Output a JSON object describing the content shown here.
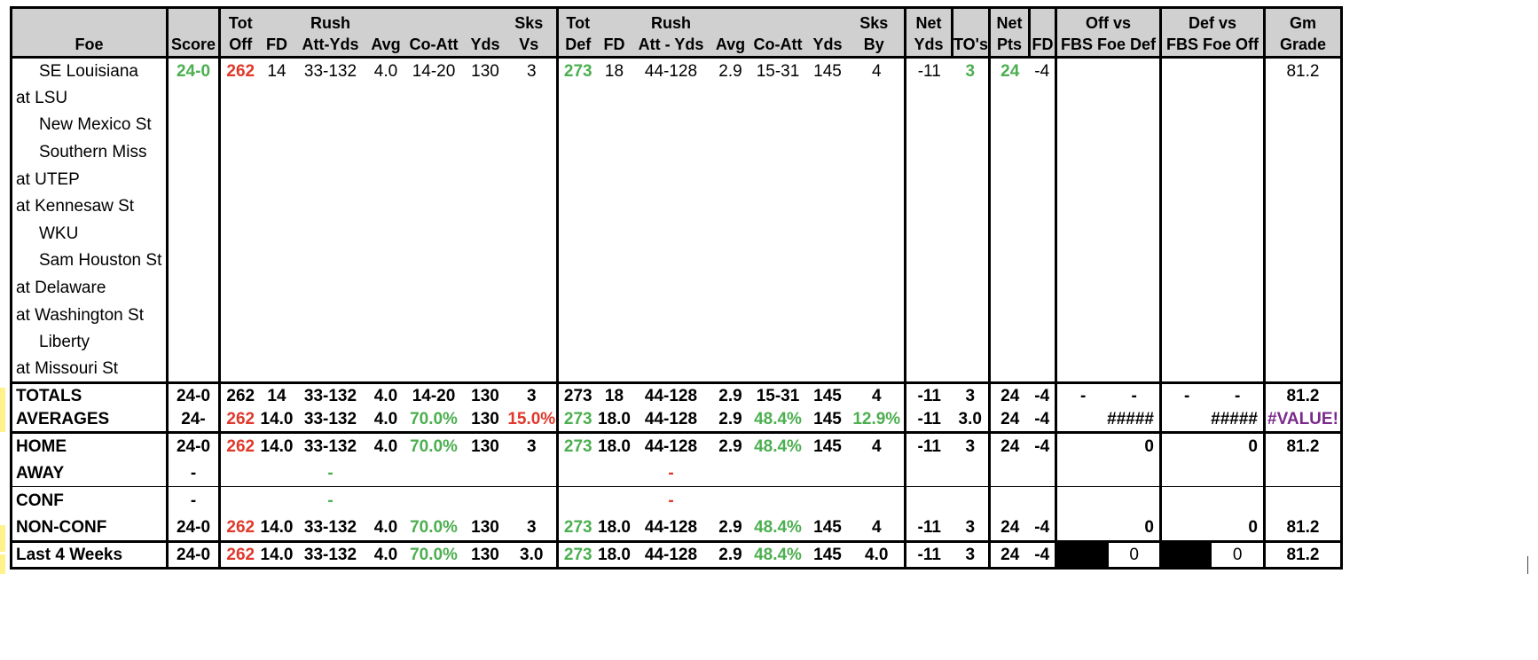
{
  "header": {
    "row1": [
      "",
      "",
      "Tot",
      "",
      "Rush",
      "",
      "",
      "",
      "Sks",
      "Tot",
      "",
      "Rush",
      "",
      "",
      "",
      "Sks",
      "Net",
      "",
      "Net",
      "",
      "Off vs",
      "Def vs",
      "Gm"
    ],
    "row2": [
      "Foe",
      "Score",
      "Off",
      "FD",
      "Att-Yds",
      "Avg",
      "Co-Att",
      "Yds",
      "Vs",
      "Def",
      "FD",
      "Att - Yds",
      "Avg",
      "Co-Att",
      "Yds",
      "By",
      "Yds",
      "TO's",
      "Pts",
      "FD",
      "FBS Foe Def",
      "FBS Foe Off",
      "Grade"
    ]
  },
  "games": [
    {
      "foe": "SE Louisiana",
      "away": false,
      "score": "24-0",
      "tot_off": "262",
      "fd": "14",
      "rush": "33-132",
      "avg": "4.0",
      "co_att": "14-20",
      "yds": "130",
      "sks_vs": "3",
      "tot_def": "273",
      "dfd": "18",
      "drush": "44-128",
      "davg": "2.9",
      "dco_att": "15-31",
      "dyds": "145",
      "sks_by": "4",
      "net_yds": "-11",
      "tos": "3",
      "net_pts": "24",
      "net_fd": "-4",
      "off_vs": "",
      "def_vs": "",
      "grade": "81.2"
    },
    {
      "foe": "at LSU",
      "away": true
    },
    {
      "foe": "New Mexico St",
      "away": false
    },
    {
      "foe": "Southern Miss",
      "away": false
    },
    {
      "foe": "at UTEP",
      "away": true
    },
    {
      "foe": "at Kennesaw St",
      "away": true
    },
    {
      "foe": "WKU",
      "away": false
    },
    {
      "foe": "Sam Houston St",
      "away": false
    },
    {
      "foe": "at Delaware",
      "away": true
    },
    {
      "foe": "at Washington St",
      "away": true
    },
    {
      "foe": "Liberty",
      "away": false
    },
    {
      "foe": "at Missouri St",
      "away": true
    }
  ],
  "totals": {
    "label": "TOTALS",
    "score": "24-0",
    "tot_off": "262",
    "fd": "14",
    "rush": "33-132",
    "avg": "4.0",
    "co_att": "14-20",
    "yds": "130",
    "sks_vs": "3",
    "tot_def": "273",
    "dfd": "18",
    "drush": "44-128",
    "davg": "2.9",
    "dco_att": "15-31",
    "dyds": "145",
    "sks_by": "4",
    "net_yds": "-11",
    "tos": "3",
    "net_pts": "24",
    "net_fd": "-4",
    "off_a": "-",
    "off_b": "-",
    "def_a": "-",
    "def_b": "-",
    "grade": "81.2"
  },
  "averages": {
    "label": "AVERAGES",
    "score": "24-",
    "tot_off": "262",
    "fd": "14.0",
    "rush": "33-132",
    "avg": "4.0",
    "co_att": "70.0%",
    "yds": "130",
    "sks_vs": "15.0%",
    "tot_def": "273",
    "dfd": "18.0",
    "drush": "44-128",
    "davg": "2.9",
    "dco_att": "48.4%",
    "dyds": "145",
    "sks_by": "12.9%",
    "net_yds": "-11",
    "tos": "3.0",
    "net_pts": "24",
    "net_fd": "-4",
    "off_vs": "#####",
    "def_vs": "#####",
    "grade": "#VALUE!"
  },
  "home": {
    "label": "HOME",
    "score": "24-0",
    "tot_off": "262",
    "fd": "14.0",
    "rush": "33-132",
    "avg": "4.0",
    "co_att": "70.0%",
    "yds": "130",
    "sks_vs": "3",
    "tot_def": "273",
    "dfd": "18.0",
    "drush": "44-128",
    "davg": "2.9",
    "dco_att": "48.4%",
    "dyds": "145",
    "sks_by": "4",
    "net_yds": "-11",
    "tos": "3",
    "net_pts": "24",
    "net_fd": "-4",
    "off_vs": "0",
    "def_vs": "0",
    "grade": "81.2"
  },
  "away": {
    "label": "AWAY",
    "score": "-",
    "rush": "-",
    "drush": "-"
  },
  "conf": {
    "label": "CONF",
    "score": "-",
    "rush": "-",
    "drush": "-"
  },
  "nonconf": {
    "label": "NON-CONF",
    "score": "24-0",
    "tot_off": "262",
    "fd": "14.0",
    "rush": "33-132",
    "avg": "4.0",
    "co_att": "70.0%",
    "yds": "130",
    "sks_vs": "3",
    "tot_def": "273",
    "dfd": "18.0",
    "drush": "44-128",
    "davg": "2.9",
    "dco_att": "48.4%",
    "dyds": "145",
    "sks_by": "4",
    "net_yds": "-11",
    "tos": "3",
    "net_pts": "24",
    "net_fd": "-4",
    "off_vs": "0",
    "def_vs": "0",
    "grade": "81.2"
  },
  "last4": {
    "label": "Last 4 Weeks",
    "score": "24-0",
    "tot_off": "262",
    "fd": "14.0",
    "rush": "33-132",
    "avg": "4.0",
    "co_att": "70.0%",
    "yds": "130",
    "sks_vs": "3.0",
    "tot_def": "273",
    "dfd": "18.0",
    "drush": "44-128",
    "davg": "2.9",
    "dco_att": "48.4%",
    "dyds": "145",
    "sks_by": "4.0",
    "net_yds": "-11",
    "tos": "3",
    "net_pts": "24",
    "net_fd": "-4",
    "off_vs": "0",
    "def_vs": "0",
    "grade": "81.2"
  },
  "colors": {
    "red": "#e0382b",
    "green": "#4caf50",
    "purple": "#7a2a8a",
    "header_bg": "#d0d0d0"
  }
}
